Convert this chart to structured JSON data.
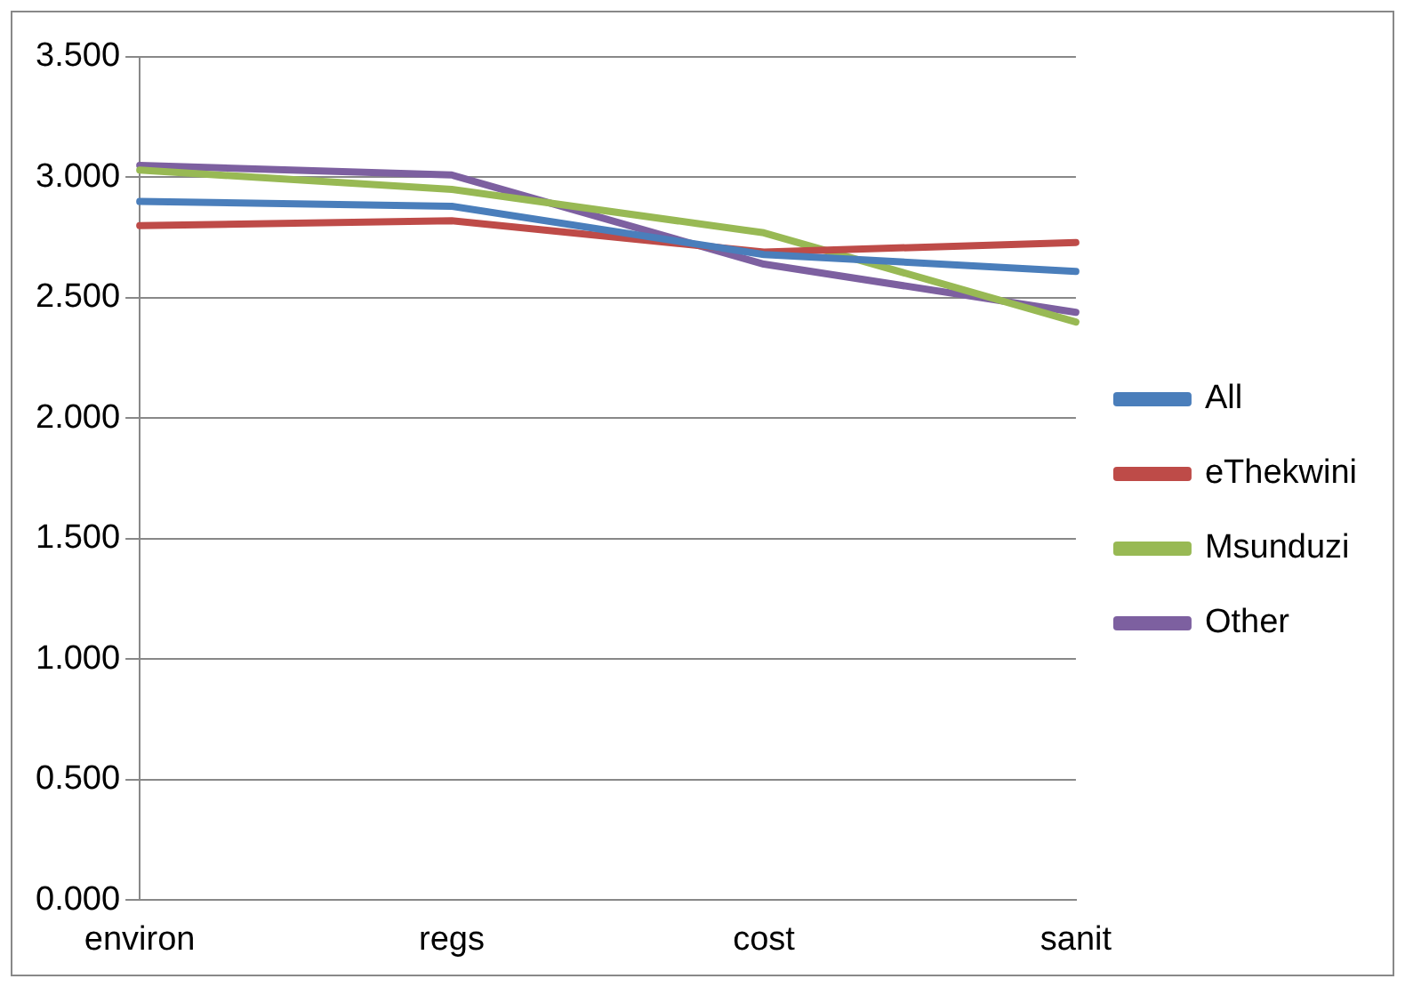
{
  "chart_data": {
    "type": "line",
    "categories": [
      "environ",
      "regs",
      "cost",
      "sanit"
    ],
    "series": [
      {
        "name": "All",
        "color": "#4a7ebb",
        "values": [
          2.9,
          2.88,
          2.68,
          2.61
        ]
      },
      {
        "name": "eThekwini",
        "color": "#be4b48",
        "values": [
          2.8,
          2.82,
          2.69,
          2.73
        ]
      },
      {
        "name": "Msunduzi",
        "color": "#98b954",
        "values": [
          3.03,
          2.95,
          2.77,
          2.4
        ]
      },
      {
        "name": "Other",
        "color": "#7d60a0",
        "values": [
          3.05,
          3.01,
          2.64,
          2.44
        ]
      }
    ],
    "ylim": [
      0,
      3.5
    ],
    "yticks": [
      {
        "value": 0,
        "label": "0.000"
      },
      {
        "value": 0.5,
        "label": "0.500"
      },
      {
        "value": 1,
        "label": "1.000"
      },
      {
        "value": 1.5,
        "label": "1.500"
      },
      {
        "value": 2,
        "label": "2.000"
      },
      {
        "value": 2.5,
        "label": "2.500"
      },
      {
        "value": 3,
        "label": "3.000"
      },
      {
        "value": 3.5,
        "label": "3.500"
      }
    ],
    "grid": "y",
    "legend": "right",
    "marker": "none",
    "line_style": "solid"
  }
}
